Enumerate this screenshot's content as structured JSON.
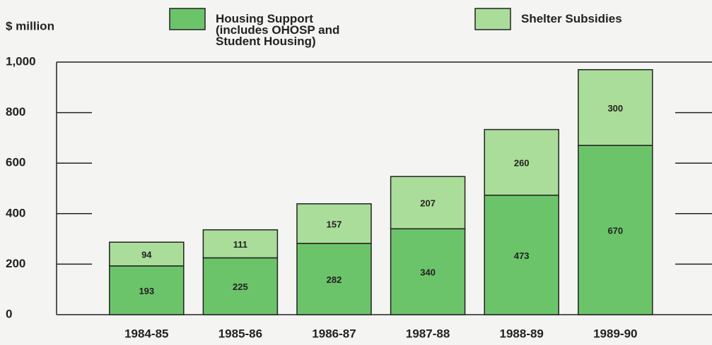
{
  "chart_data": {
    "type": "stacked_bar",
    "y_axis_label": "$ million",
    "categories": [
      "1984-85",
      "1985-86",
      "1986-87",
      "1987-88",
      "1988-89",
      "1989-90"
    ],
    "series": [
      {
        "name": "Housing Support\n(includes OHOSP and\nStudent Housing)",
        "color": "#6cc46a",
        "values": [
          193,
          225,
          282,
          340,
          473,
          670
        ]
      },
      {
        "name": "Shelter Subsidies",
        "color": "#aadd99",
        "values": [
          94,
          111,
          157,
          207,
          260,
          300
        ]
      }
    ],
    "ylim": [
      0,
      1000
    ],
    "yticks": [
      0,
      200,
      400,
      600,
      800,
      {
        "value": 1000,
        "label": "1,000"
      }
    ]
  }
}
